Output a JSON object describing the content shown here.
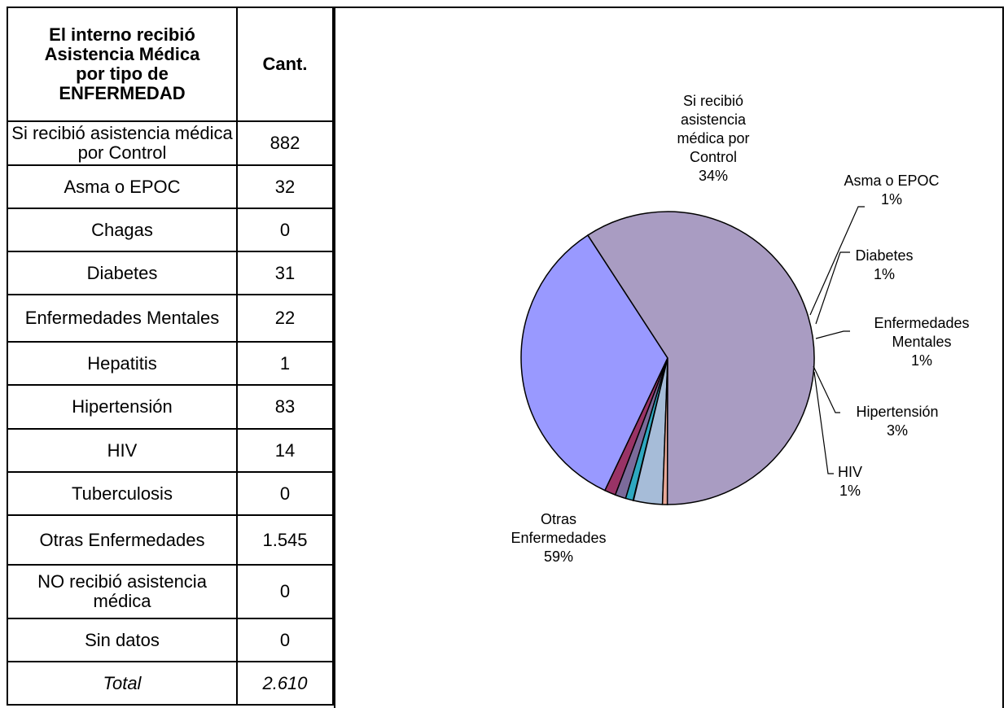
{
  "table": {
    "header": {
      "category_lines": [
        "El interno recibió",
        "Asistencia Médica",
        "por tipo de",
        "ENFERMEDAD"
      ],
      "count": "Cant."
    },
    "rows": [
      {
        "label": "Si recibió asistencia médica por Control",
        "value": "882"
      },
      {
        "label": "Asma o EPOC",
        "value": "32"
      },
      {
        "label": "Chagas",
        "value": "0"
      },
      {
        "label": "Diabetes",
        "value": "31"
      },
      {
        "label": "Enfermedades Mentales",
        "value": "22"
      },
      {
        "label": "Hepatitis",
        "value": "1"
      },
      {
        "label": "Hipertensión",
        "value": "83"
      },
      {
        "label": "HIV",
        "value": "14"
      },
      {
        "label": "Tuberculosis",
        "value": "0"
      },
      {
        "label": "Otras Enfermedades",
        "value": "1.545"
      },
      {
        "label": "NO recibió asistencia médica",
        "value": "0"
      },
      {
        "label": "Sin datos",
        "value": "0"
      }
    ],
    "total": {
      "label": "Total",
      "value": "2.610"
    }
  },
  "chart_data": {
    "type": "pie",
    "slices": [
      {
        "label": "Si recibió asistencia médica por Control",
        "value": 882,
        "percent_label": "34%",
        "color": "#9999ff"
      },
      {
        "label": "Asma o EPOC",
        "value": 32,
        "percent_label": "1%",
        "color": "#993366"
      },
      {
        "label": "Diabetes",
        "value": 31,
        "percent_label": "1%",
        "color": "#7b6a9a"
      },
      {
        "label": "Enfermedades Mentales",
        "value": 22,
        "percent_label": "1%",
        "color": "#2ea8c0"
      },
      {
        "label": "Hepatitis",
        "value": 1,
        "percent_label": "",
        "color": "#ffffff"
      },
      {
        "label": "Hipertensión",
        "value": 83,
        "percent_label": "3%",
        "color": "#a6bcd8"
      },
      {
        "label": "HIV",
        "value": 14,
        "percent_label": "1%",
        "color": "#e8a898"
      },
      {
        "label": "Otras Enfermedades",
        "value": 1545,
        "percent_label": "59%",
        "color": "#a99cc2"
      }
    ],
    "labels": [
      {
        "name": "Si recibió asistencia médica por Control",
        "lines": [
          "Si recibió",
          "asistencia",
          "médica por",
          "Control",
          "34%"
        ]
      },
      {
        "name": "Asma o EPOC",
        "lines": [
          "Asma o EPOC",
          "1%"
        ]
      },
      {
        "name": "Diabetes",
        "lines": [
          "Diabetes",
          "1%"
        ]
      },
      {
        "name": "Enfermedades Mentales",
        "lines": [
          "Enfermedades",
          "Mentales",
          "1%"
        ]
      },
      {
        "name": "Hipertensión",
        "lines": [
          "Hipertensión",
          "3%"
        ]
      },
      {
        "name": "HIV",
        "lines": [
          "HIV",
          "1%"
        ]
      },
      {
        "name": "Otras Enfermedades",
        "lines": [
          "Otras",
          "Enfermedades",
          "59%"
        ]
      }
    ]
  }
}
